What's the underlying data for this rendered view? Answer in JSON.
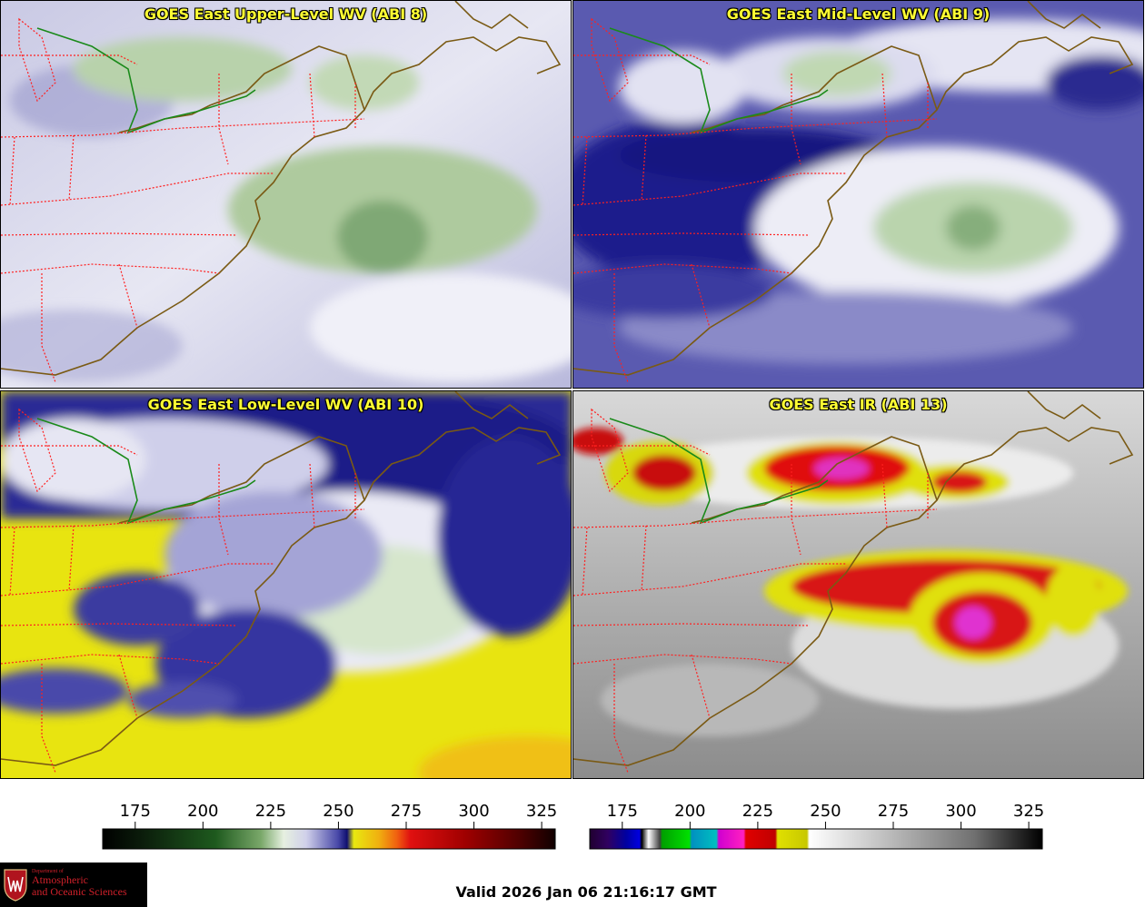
{
  "panels": [
    {
      "title": "GOES East Upper-Level WV (ABI 8)",
      "kind": "wv_upper"
    },
    {
      "title": "GOES East Mid-Level WV (ABI 9)",
      "kind": "wv_mid"
    },
    {
      "title": "GOES East Low-Level WV (ABI 10)",
      "kind": "wv_low"
    },
    {
      "title": "GOES East IR (ABI 13)",
      "kind": "ir"
    }
  ],
  "colorbars": [
    {
      "ticks": [
        "175",
        "200",
        "225",
        "250",
        "275",
        "300",
        "325"
      ],
      "tick_values": [
        175,
        200,
        225,
        250,
        275,
        300,
        325
      ],
      "range": [
        163,
        330
      ],
      "palette": "water-vapor"
    },
    {
      "ticks": [
        "175",
        "200",
        "225",
        "250",
        "275",
        "300",
        "325"
      ],
      "tick_values": [
        175,
        200,
        225,
        250,
        275,
        300,
        325
      ],
      "range": [
        163,
        330
      ],
      "palette": "infrared"
    }
  ],
  "logo": {
    "dept": "Department of",
    "line1": "Atmospheric",
    "line2": "and Oceanic Sciences"
  },
  "valid_time": "Valid 2026 Jan 06 21:16:17 GMT",
  "colors": {
    "title_text": "#ffff33",
    "state_borders": "#ff2020",
    "coastline": "#7a5a14",
    "lake_border": "#1a8a1a"
  }
}
